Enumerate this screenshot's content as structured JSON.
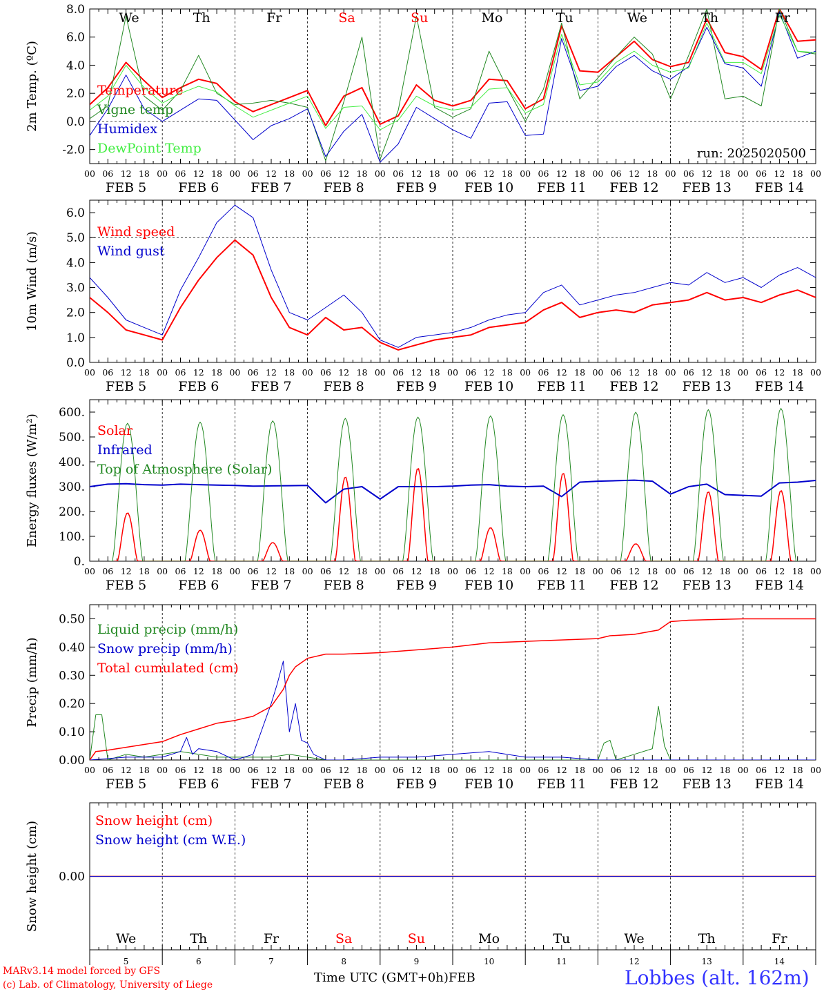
{
  "run_label": "run: 2025020500",
  "station_label": "Lobbes (alt. 162m)",
  "credits": [
    "MARv3.14 model forced by GFS",
    "(c) Lab. of Climatology, University of Liege"
  ],
  "x_axis_title": "Time UTC (GMT+0h)",
  "month_label": "FEB",
  "hour_ticks": [
    "00",
    "06",
    "12",
    "18"
  ],
  "date_labels": [
    "FEB  5",
    "FEB  6",
    "FEB  7",
    "FEB  8",
    "FEB  9",
    "FEB 10",
    "FEB 11",
    "FEB 12",
    "FEB 13",
    "FEB 14"
  ],
  "day_names": [
    "We",
    "Th",
    "Fr",
    "Sa",
    "Su",
    "Mo",
    "Tu",
    "We",
    "Th",
    "Fr"
  ],
  "weekend_day_color": "#ff0000",
  "bottom_day_numbers": [
    "5",
    "6",
    "7",
    "8",
    "9",
    "10",
    "11",
    "12",
    "13",
    "14"
  ],
  "chart_data": [
    {
      "type": "line",
      "ylabel": "2m Temp. (ºC)",
      "ylim": [
        -3,
        8
      ],
      "yticks": [
        "-2.0",
        "0.0",
        "2.0",
        "4.0",
        "6.0",
        "8.0"
      ],
      "x_unit": "hours since Feb 5 00 UTC",
      "show_day_names": true,
      "series": [
        {
          "name": "Temperature",
          "color": "#ff0000",
          "width": 2,
          "x": [
            0,
            6,
            12,
            18,
            24,
            30,
            36,
            42,
            48,
            54,
            60,
            66,
            72,
            78,
            84,
            90,
            96,
            102,
            108,
            114,
            120,
            126,
            132,
            138,
            144,
            150,
            156,
            162,
            168,
            174,
            180,
            186,
            192,
            198,
            204,
            210,
            216,
            222,
            228,
            234,
            240
          ],
          "y": [
            1.2,
            2.4,
            4.2,
            2.9,
            1.7,
            2.4,
            3.0,
            2.7,
            1.4,
            0.7,
            1.2,
            1.7,
            2.2,
            -0.3,
            1.8,
            2.4,
            -0.2,
            0.4,
            2.6,
            1.5,
            1.1,
            1.5,
            3.0,
            2.9,
            0.9,
            1.6,
            6.8,
            3.6,
            3.5,
            4.6,
            5.7,
            4.4,
            3.9,
            4.2,
            7.3,
            4.9,
            4.6,
            3.7,
            8.0,
            5.7,
            5.8
          ]
        },
        {
          "name": "Vigne temp",
          "color": "#228822",
          "width": 1,
          "x": [
            0,
            6,
            12,
            18,
            24,
            30,
            36,
            42,
            48,
            54,
            60,
            66,
            72,
            78,
            84,
            90,
            96,
            102,
            108,
            114,
            120,
            126,
            132,
            138,
            144,
            150,
            156,
            162,
            168,
            174,
            180,
            186,
            192,
            198,
            204,
            210,
            216,
            222,
            228,
            234,
            240
          ],
          "y": [
            0.2,
            1.1,
            7.5,
            1.8,
            0.8,
            2.2,
            4.7,
            2.0,
            1.2,
            1.3,
            1.5,
            1.3,
            1.0,
            -2.8,
            1.4,
            6.0,
            -2.7,
            0.8,
            7.5,
            1.0,
            0.3,
            0.9,
            5.0,
            2.4,
            0.0,
            2.3,
            7.0,
            1.6,
            3.1,
            4.6,
            6.0,
            4.8,
            1.6,
            4.7,
            8.0,
            1.6,
            1.8,
            1.1,
            8.0,
            5.0,
            4.8
          ]
        },
        {
          "name": "Humidex",
          "color": "#0000cc",
          "width": 1,
          "x": [
            0,
            6,
            12,
            18,
            24,
            30,
            36,
            42,
            48,
            54,
            60,
            66,
            72,
            78,
            84,
            90,
            96,
            102,
            108,
            114,
            120,
            126,
            132,
            138,
            144,
            150,
            156,
            162,
            168,
            174,
            180,
            186,
            192,
            198,
            204,
            210,
            216,
            222,
            228,
            234,
            240
          ],
          "y": [
            -1.0,
            0.9,
            3.3,
            0.9,
            0.0,
            0.8,
            1.6,
            1.5,
            0.1,
            -1.3,
            -0.3,
            0.2,
            0.9,
            -2.5,
            -0.7,
            0.5,
            -2.9,
            -1.6,
            1.0,
            0.2,
            -0.6,
            -1.2,
            1.3,
            1.4,
            -1.0,
            -0.9,
            5.9,
            2.2,
            2.5,
            3.9,
            4.7,
            3.6,
            3.0,
            3.9,
            6.7,
            4.1,
            3.8,
            2.5,
            7.8,
            4.5,
            5.0
          ]
        },
        {
          "name": "DewPoint Temp",
          "color": "#44ee44",
          "width": 1,
          "x": [
            0,
            6,
            12,
            18,
            24,
            30,
            36,
            42,
            48,
            54,
            60,
            66,
            72,
            78,
            84,
            90,
            96,
            102,
            108,
            114,
            120,
            126,
            132,
            138,
            144,
            150,
            156,
            162,
            168,
            174,
            180,
            186,
            192,
            198,
            204,
            210,
            216,
            222,
            228,
            234,
            240
          ],
          "y": [
            0.8,
            1.8,
            4.0,
            2.4,
            1.3,
            2.0,
            2.5,
            2.1,
            1.1,
            0.3,
            0.8,
            1.3,
            1.8,
            -0.5,
            1.0,
            1.1,
            -0.6,
            0.1,
            1.8,
            1.1,
            0.8,
            1.0,
            2.3,
            2.4,
            0.6,
            1.2,
            6.2,
            2.6,
            2.8,
            4.2,
            5.0,
            4.0,
            3.5,
            3.8,
            7.0,
            4.2,
            4.2,
            3.4,
            7.6,
            5.0,
            4.9
          ]
        }
      ]
    },
    {
      "type": "line",
      "ylabel": "10m Wind (m/s)",
      "ylim": [
        0,
        6.5
      ],
      "yticks": [
        "0.0",
        "1.0",
        "2.0",
        "3.0",
        "4.0",
        "5.0",
        "6.0"
      ],
      "dashed_reference_y": 5.0,
      "series": [
        {
          "name": "Wind speed",
          "color": "#ff0000",
          "width": 2,
          "x": [
            0,
            6,
            12,
            18,
            24,
            30,
            36,
            42,
            48,
            54,
            60,
            66,
            72,
            78,
            84,
            90,
            96,
            102,
            108,
            114,
            120,
            126,
            132,
            138,
            144,
            150,
            156,
            162,
            168,
            174,
            180,
            186,
            192,
            198,
            204,
            210,
            216,
            222,
            228,
            234,
            240
          ],
          "y": [
            2.6,
            2.0,
            1.3,
            1.1,
            0.9,
            2.2,
            3.3,
            4.2,
            4.9,
            4.3,
            2.6,
            1.4,
            1.1,
            1.8,
            1.3,
            1.4,
            0.8,
            0.5,
            0.7,
            0.9,
            1.0,
            1.1,
            1.4,
            1.5,
            1.6,
            2.1,
            2.4,
            1.8,
            2.0,
            2.1,
            2.0,
            2.3,
            2.4,
            2.5,
            2.8,
            2.5,
            2.6,
            2.4,
            2.7,
            2.9,
            2.6
          ]
        },
        {
          "name": "Wind gust",
          "color": "#0000cc",
          "width": 1,
          "x": [
            0,
            6,
            12,
            18,
            24,
            30,
            36,
            42,
            48,
            54,
            60,
            66,
            72,
            78,
            84,
            90,
            96,
            102,
            108,
            114,
            120,
            126,
            132,
            138,
            144,
            150,
            156,
            162,
            168,
            174,
            180,
            186,
            192,
            198,
            204,
            210,
            216,
            222,
            228,
            234,
            240
          ],
          "y": [
            3.4,
            2.6,
            1.7,
            1.4,
            1.1,
            2.9,
            4.2,
            5.6,
            6.3,
            5.8,
            3.7,
            2.0,
            1.7,
            2.2,
            2.7,
            2.0,
            0.9,
            0.6,
            1.0,
            1.1,
            1.2,
            1.4,
            1.7,
            1.9,
            2.0,
            2.8,
            3.1,
            2.3,
            2.5,
            2.7,
            2.8,
            3.0,
            3.2,
            3.1,
            3.6,
            3.2,
            3.4,
            3.0,
            3.5,
            3.8,
            3.4
          ]
        }
      ]
    },
    {
      "type": "line",
      "ylabel": "Energy fluxes (W/m²)",
      "ylim": [
        0,
        650
      ],
      "yticks": [
        "0.",
        "100.",
        "200.",
        "300.",
        "400.",
        "500.",
        "600."
      ],
      "series": [
        {
          "name": "Solar",
          "color": "#ff0000",
          "width": 1.5,
          "day_peaks": [
            195,
            125,
            75,
            340,
            375,
            135,
            355,
            70,
            280,
            285
          ]
        },
        {
          "name": "Infrared",
          "color": "#0000cc",
          "width": 2,
          "x": [
            0,
            6,
            12,
            18,
            24,
            30,
            36,
            42,
            48,
            54,
            60,
            66,
            72,
            78,
            84,
            90,
            96,
            102,
            108,
            114,
            120,
            126,
            132,
            138,
            144,
            150,
            156,
            162,
            168,
            174,
            180,
            186,
            192,
            198,
            204,
            210,
            216,
            222,
            228,
            234,
            240
          ],
          "y": [
            300,
            310,
            312,
            308,
            306,
            310,
            308,
            306,
            305,
            302,
            303,
            304,
            305,
            235,
            290,
            300,
            250,
            300,
            300,
            300,
            302,
            306,
            308,
            302,
            300,
            302,
            260,
            318,
            322,
            324,
            326,
            322,
            270,
            300,
            310,
            268,
            265,
            262,
            315,
            318,
            325
          ]
        },
        {
          "name": "Top of Atmosphere (Solar)",
          "color": "#228822",
          "width": 1,
          "day_peaks": [
            555,
            560,
            565,
            575,
            580,
            585,
            590,
            600,
            610,
            615
          ]
        }
      ]
    },
    {
      "type": "line",
      "ylabel": "Precip (mm/h)",
      "ylim": [
        0,
        0.55
      ],
      "yticks": [
        "0.00",
        "0.10",
        "0.20",
        "0.30",
        "0.40",
        "0.50"
      ],
      "series": [
        {
          "name": "Liquid precip (mm/h)",
          "color": "#228822",
          "width": 1,
          "x": [
            0,
            2,
            4,
            6,
            12,
            18,
            24,
            30,
            36,
            42,
            48,
            54,
            60,
            66,
            72,
            78,
            84,
            96,
            120,
            144,
            168,
            170,
            172,
            174,
            180,
            186,
            188,
            190,
            192,
            198,
            240
          ],
          "y": [
            0,
            0.16,
            0.16,
            0,
            0.02,
            0.01,
            0.02,
            0.03,
            0.02,
            0.01,
            0.01,
            0.01,
            0.01,
            0.02,
            0.01,
            0,
            0,
            0,
            0,
            0,
            0,
            0.06,
            0.07,
            0,
            0.02,
            0.04,
            0.19,
            0.05,
            0,
            0,
            0
          ]
        },
        {
          "name": "Snow precip (mm/h)",
          "color": "#0000cc",
          "width": 1,
          "x": [
            0,
            12,
            24,
            30,
            32,
            34,
            36,
            42,
            48,
            54,
            60,
            62,
            64,
            66,
            68,
            70,
            72,
            74,
            76,
            78,
            84,
            96,
            108,
            120,
            132,
            144,
            156,
            168,
            180,
            192,
            204,
            216,
            240
          ],
          "y": [
            0,
            0.01,
            0.01,
            0.03,
            0.08,
            0.02,
            0.04,
            0.03,
            0,
            0.02,
            0.2,
            0.27,
            0.35,
            0.1,
            0.2,
            0.07,
            0.06,
            0.02,
            0.01,
            0,
            0,
            0.01,
            0.01,
            0.02,
            0.03,
            0.01,
            0.01,
            0,
            0,
            0,
            0,
            0,
            0
          ]
        },
        {
          "name": "Total cumulated (cm)",
          "color": "#ff0000",
          "width": 1.5,
          "x": [
            0,
            2,
            6,
            12,
            18,
            24,
            30,
            36,
            42,
            48,
            54,
            60,
            64,
            66,
            68,
            72,
            78,
            84,
            96,
            108,
            120,
            132,
            144,
            156,
            168,
            172,
            180,
            188,
            192,
            198,
            216,
            240
          ],
          "y": [
            0,
            0.03,
            0.035,
            0.045,
            0.055,
            0.065,
            0.09,
            0.11,
            0.13,
            0.14,
            0.155,
            0.19,
            0.25,
            0.3,
            0.33,
            0.36,
            0.375,
            0.375,
            0.38,
            0.39,
            0.4,
            0.415,
            0.42,
            0.425,
            0.43,
            0.44,
            0.445,
            0.46,
            0.49,
            0.495,
            0.5,
            0.5
          ]
        }
      ]
    },
    {
      "type": "line",
      "ylabel": "Snow height (cm)",
      "yticks": [
        "0.00"
      ],
      "show_bottom_days": true,
      "series": [
        {
          "name": "Snow height (cm)",
          "color": "#ff0000",
          "width": 1.5,
          "x": [
            0,
            240
          ],
          "y": [
            0,
            0
          ]
        },
        {
          "name": "Snow height (cm W.E.)",
          "color": "#0000cc",
          "width": 1,
          "x": [
            0,
            240
          ],
          "y": [
            0,
            0
          ]
        }
      ]
    }
  ]
}
